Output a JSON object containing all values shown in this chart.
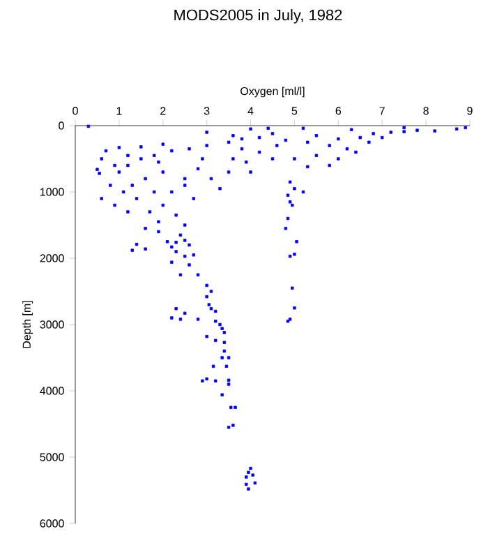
{
  "chart_data": {
    "type": "scatter",
    "title": "MODS2005 in July, 1982",
    "xlabel": "Oxygen [ml/l]",
    "ylabel": "Depth [m]",
    "xlim": [
      0,
      9
    ],
    "xticks": [
      0,
      1,
      2,
      3,
      4,
      5,
      6,
      7,
      8,
      9
    ],
    "ylim": [
      6000,
      0
    ],
    "yticks": [
      0,
      1000,
      2000,
      3000,
      4000,
      5000,
      6000
    ],
    "grid": false,
    "marker": "square",
    "series": [
      {
        "color": "#0000ff",
        "x": [
          1.4,
          1.3,
          1.6,
          2.1,
          2.2,
          2.3,
          2.5,
          2.6,
          2.3,
          2.5,
          2.7,
          2.6,
          2.2,
          2.4,
          2.8,
          3.0,
          3.1,
          3.0,
          3.05,
          2.3,
          2.5,
          2.2,
          2.4,
          2.8,
          3.1,
          3.2,
          3.2,
          3.3,
          3.35,
          3.4,
          3.0,
          3.2,
          3.4,
          3.4,
          3.35,
          3.5,
          3.45,
          3.15,
          3.0,
          2.9,
          3.2,
          3.5,
          3.5,
          3.35,
          3.55,
          3.65,
          3.5,
          3.6,
          4.0,
          3.95,
          4.05,
          3.9,
          3.9,
          4.1,
          3.95,
          4.9,
          5.0,
          4.85,
          5.2,
          4.9,
          4.95,
          4.85,
          4.8,
          4.9,
          5.0,
          5.05,
          4.95,
          5.0,
          4.85,
          4.9,
          0.3,
          8.7,
          8.9,
          8.2,
          7.8,
          7.5,
          7.2,
          6.8,
          6.5,
          6.0,
          5.5,
          4.5,
          4.0,
          3.0,
          2.0,
          1.5,
          1.0,
          0.7,
          0.6,
          0.5,
          0.55,
          0.6,
          0.8,
          1.0,
          1.2,
          1.5,
          1.8,
          2.2,
          2.6,
          3.0,
          3.5,
          3.8,
          4.2,
          4.8,
          5.3,
          5.8,
          6.2,
          6.7,
          7.0,
          5.5,
          5.0,
          6.0,
          5.3,
          5.8,
          4.5,
          4.2,
          3.9,
          3.5,
          3.1,
          2.8,
          2.5,
          2.0,
          1.6,
          1.3,
          1.1,
          1.4,
          1.8,
          2.2,
          2.5,
          2.7,
          3.3,
          2.0,
          1.7,
          1.9,
          2.3,
          2.5,
          1.6,
          1.9,
          2.4,
          1.2,
          0.9,
          3.8,
          4.6,
          6.4,
          4.0,
          3.6,
          2.9,
          1.9,
          1.2,
          0.9,
          7.5,
          6.3,
          5.2,
          4.4,
          3.6
        ],
        "values": [
          1790,
          1880,
          1860,
          1750,
          1830,
          1760,
          1730,
          1800,
          1900,
          1970,
          1950,
          2100,
          2060,
          2250,
          2250,
          2410,
          2500,
          2580,
          2700,
          2760,
          2830,
          2900,
          2920,
          2920,
          2760,
          2800,
          2950,
          3000,
          3060,
          3120,
          3180,
          3240,
          3270,
          3400,
          3500,
          3500,
          3630,
          3630,
          3820,
          3850,
          3850,
          3840,
          3900,
          4060,
          4250,
          4250,
          4550,
          4520,
          5170,
          5230,
          5270,
          5300,
          5410,
          5390,
          5480,
          850,
          950,
          1050,
          1000,
          1150,
          1200,
          1400,
          1550,
          1970,
          1940,
          1750,
          2450,
          2750,
          2950,
          2920,
          10,
          50,
          30,
          80,
          70,
          90,
          100,
          120,
          180,
          200,
          150,
          120,
          50,
          100,
          280,
          320,
          330,
          380,
          500,
          660,
          720,
          1100,
          900,
          700,
          600,
          500,
          450,
          380,
          350,
          300,
          250,
          200,
          180,
          220,
          250,
          300,
          350,
          250,
          180,
          450,
          500,
          500,
          620,
          600,
          500,
          400,
          550,
          700,
          800,
          650,
          800,
          700,
          800,
          900,
          1000,
          1100,
          1000,
          1000,
          900,
          1100,
          950,
          1200,
          1300,
          1450,
          1350,
          1500,
          1550,
          1600,
          1650,
          1300,
          1200,
          350,
          300,
          400,
          700,
          500,
          500,
          550,
          450,
          600,
          30,
          60,
          40,
          40,
          150
        ]
      }
    ]
  }
}
